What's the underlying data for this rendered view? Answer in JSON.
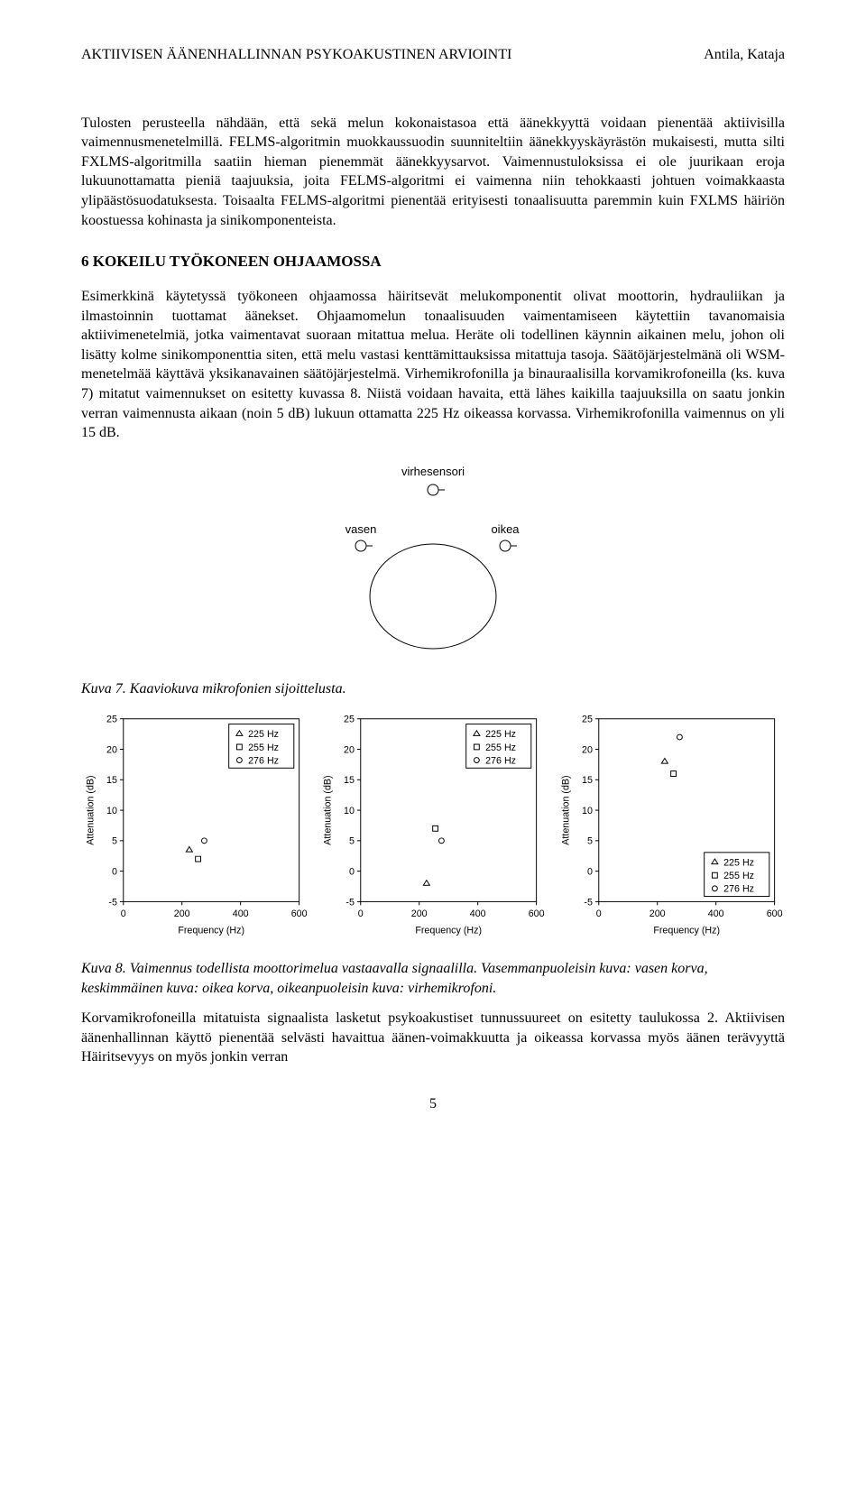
{
  "header": {
    "left": "AKTIIVISEN ÄÄNENHALLINNAN PSYKOAKUSTINEN ARVIOINTI",
    "right": "Antila, Kataja"
  },
  "para1": "Tulosten perusteella nähdään, että sekä melun kokonaistasoa että äänekkyyttä voidaan pienentää aktiivisilla vaimennusmenetelmillä. FELMS-algoritmin muokkaussuodin suunniteltiin äänekkyyskäyrästön mukaisesti, mutta silti FXLMS-algoritmilla saatiin hieman pienemmät äänekkyysarvot. Vaimennustuloksissa ei ole juurikaan eroja lukuunottamatta pieniä taajuuksia, joita FELMS-algoritmi ei vaimenna niin tehokkaasti johtuen voimakkaasta ylipäästösuodatuksesta. Toisaalta FELMS-algoritmi pienentää erityisesti tonaalisuutta paremmin kuin FXLMS häiriön koostuessa kohinasta ja sinikomponenteista.",
  "section_heading": "6   KOKEILU TYÖKONEEN OHJAAMOSSA",
  "para2": "Esimerkkinä käytetyssä työkoneen ohjaamossa häiritsevät melukomponentit olivat moottorin, hydrauliikan ja ilmastoinnin tuottamat äänekset. Ohjaamomelun tonaalisuuden vaimentamiseen käytettiin tavanomaisia aktiivimenetelmiä, jotka vaimentavat suoraan mitattua melua. Heräte oli todellinen käynnin aikainen melu, johon oli lisätty kolme sinikomponenttia siten, että melu vastasi kenttämittauksissa mitattuja tasoja. Säätöjärjestelmänä oli WSM-menetelmää käyttävä yksikanavainen säätöjärjestelmä. Virhemikrofonilla ja binauraalisilla korvamikrofoneilla (ks. kuva 7) mitatut vaimennukset on esitetty kuvassa 8. Niistä voidaan havaita, että lähes kaikilla taajuuksilla on saatu jonkin verran vaimennusta aikaan (noin 5 dB) lukuun ottamatta 225 Hz oikeassa korvassa. Virhemikrofonilla vaimennus on yli 15 dB.",
  "fig7": {
    "label_top": "virhesensori",
    "label_left": "vasen",
    "label_right": "oikea",
    "stroke": "#000000",
    "line_width": 1
  },
  "caption7": "Kuva  7. Kaaviokuva mikrofonien sijoittelusta.",
  "chart_style": {
    "type": "scatter",
    "xlim": [
      0,
      600
    ],
    "ylim": [
      -5,
      25
    ],
    "xticks": [
      0,
      200,
      400,
      600
    ],
    "yticks": [
      -5,
      0,
      5,
      10,
      15,
      20,
      25
    ],
    "xlabel": "Frequency (Hz)",
    "ylabel": "Attenuation (dB)",
    "axis_fontsize": 11,
    "tick_fontsize": 11,
    "legend_fontsize": 11,
    "axis_color": "#000000",
    "background_color": "#ffffff",
    "marker_size": 6,
    "marker_stroke_width": 1,
    "box_line_width": 1,
    "series_defs": [
      {
        "label": "225 Hz",
        "marker": "triangle",
        "color": "#000000"
      },
      {
        "label": "255 Hz",
        "marker": "square",
        "color": "#000000"
      },
      {
        "label": "276 Hz",
        "marker": "circle",
        "color": "#000000"
      }
    ]
  },
  "panels": [
    {
      "legend_pos": "top-right",
      "points": [
        {
          "series": 0,
          "x": 225,
          "y": 3.5
        },
        {
          "series": 1,
          "x": 255,
          "y": 2
        },
        {
          "series": 2,
          "x": 276,
          "y": 5
        }
      ]
    },
    {
      "legend_pos": "top-right",
      "points": [
        {
          "series": 0,
          "x": 225,
          "y": -2
        },
        {
          "series": 1,
          "x": 255,
          "y": 7
        },
        {
          "series": 2,
          "x": 276,
          "y": 5
        }
      ]
    },
    {
      "legend_pos": "bottom-right",
      "points": [
        {
          "series": 0,
          "x": 225,
          "y": 18
        },
        {
          "series": 1,
          "x": 255,
          "y": 16
        },
        {
          "series": 2,
          "x": 276,
          "y": 22
        }
      ]
    }
  ],
  "caption8": "Kuva  8. Vaimennus todellista moottorimelua vastaavalla signaalilla. Vasemmanpuoleisin kuva: vasen korva, keskimmäinen kuva: oikea korva, oikeanpuoleisin kuva: virhemikrofoni.",
  "para3": "Korvamikrofoneilla mitatuista signaalista lasketut psykoakustiset tunnussuureet on esitetty taulukossa 2. Aktiivisen äänenhallinnan käyttö pienentää selvästi havaittua äänen-voimakkuutta ja oikeassa korvassa myös äänen terävyyttä Häiritsevyys on myös jonkin verran",
  "page_number": "5"
}
